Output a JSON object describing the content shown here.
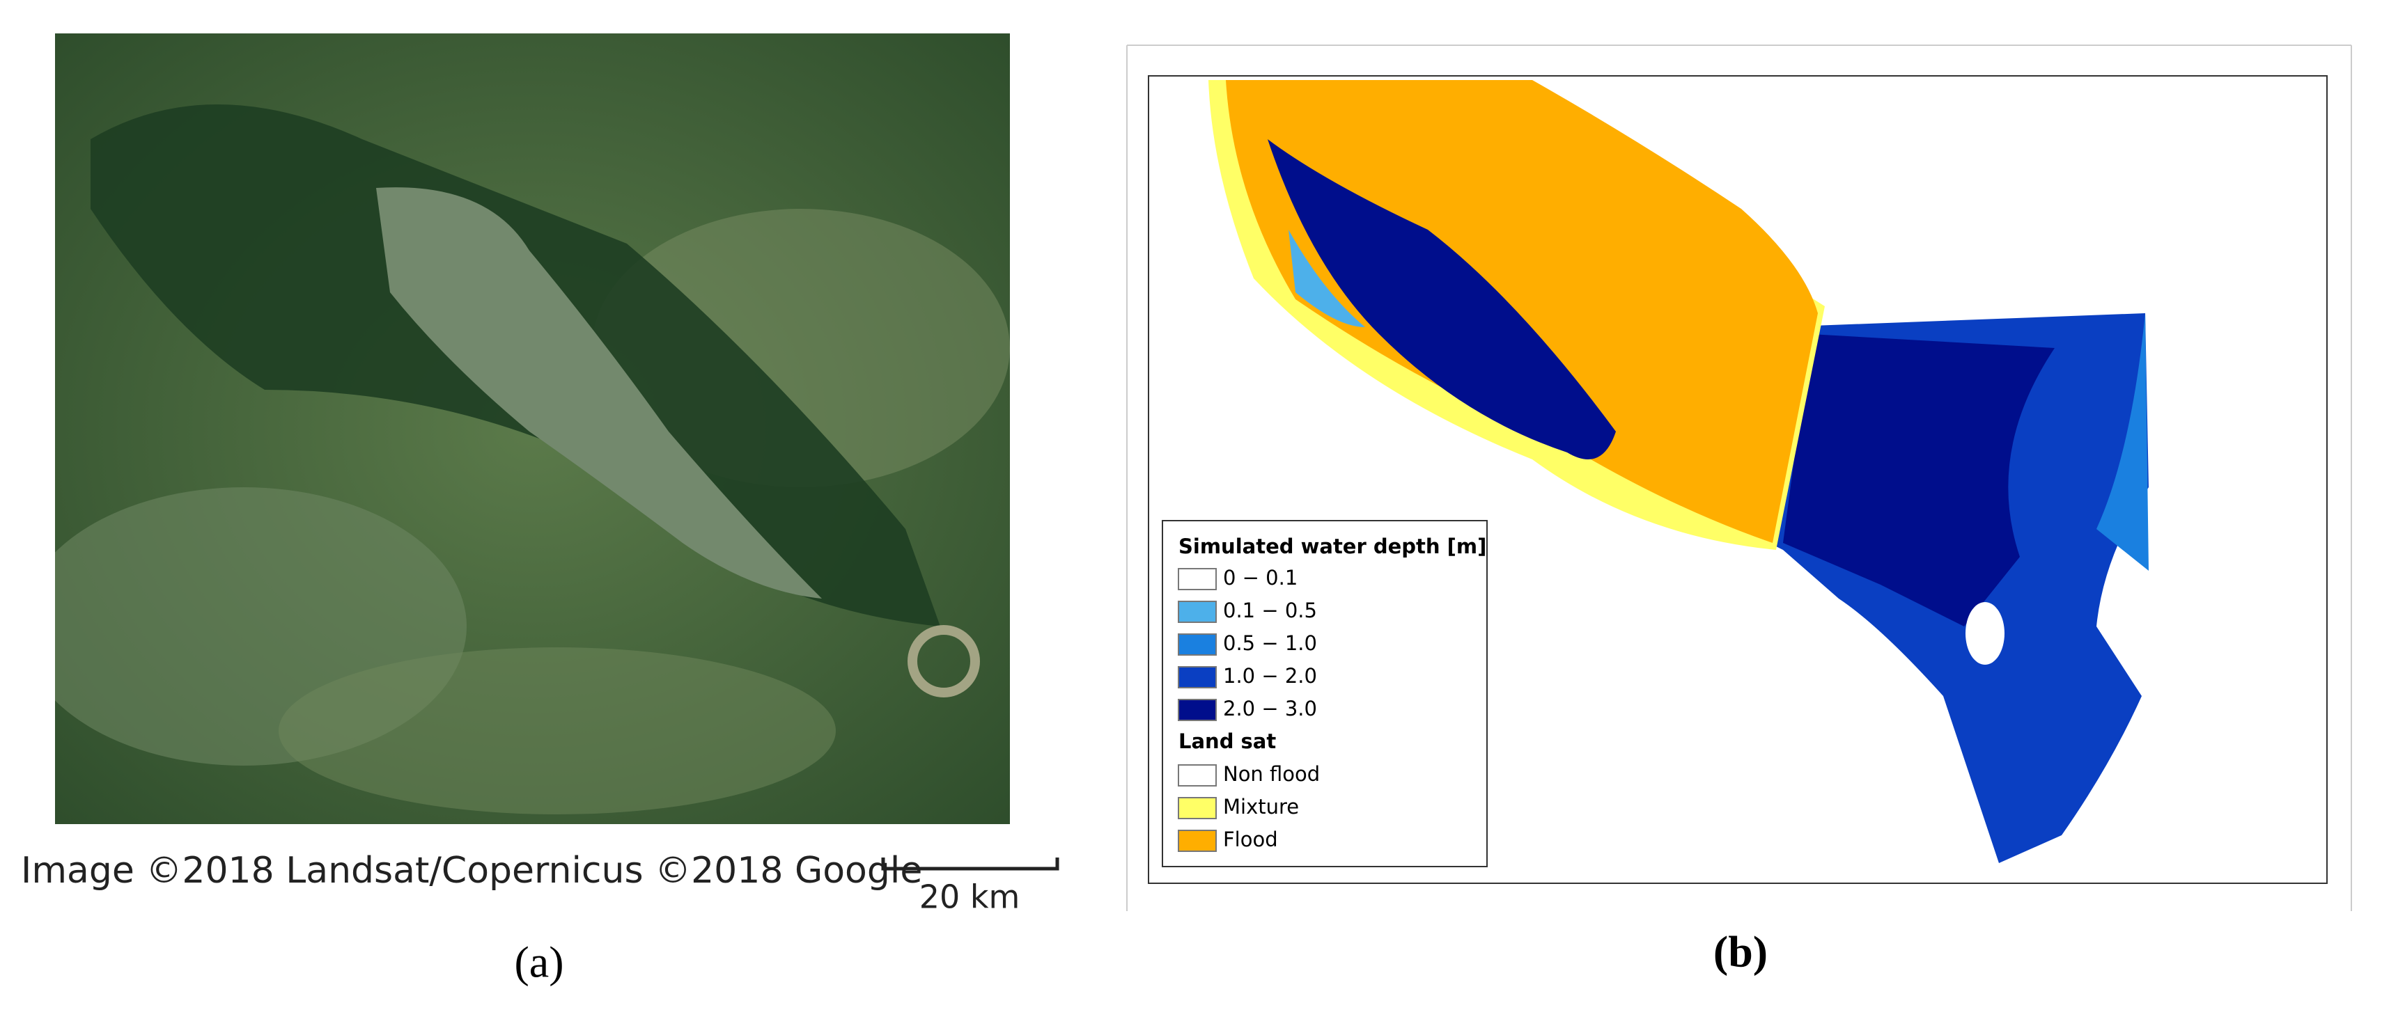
{
  "panel_a": {
    "attribution": "Image ©2018 Landsat/Copernicus ©2018 Google",
    "scale_label": "20 km",
    "label": "(a)"
  },
  "panel_b": {
    "label": "(b)",
    "legend": {
      "depth_title": "Simulated water depth [m]",
      "depth_items": [
        {
          "label": "0 − 0.1",
          "color": "#ffffff"
        },
        {
          "label": "0.1 − 0.5",
          "color": "#4db0ea"
        },
        {
          "label": "0.5 − 1.0",
          "color": "#1a80e0"
        },
        {
          "label": "1.0 − 2.0",
          "color": "#0a3fc2"
        },
        {
          "label": "2.0 − 3.0",
          "color": "#000e8c"
        }
      ],
      "landsat_title": "Land sat",
      "landsat_items": [
        {
          "label": "Non flood",
          "color": "#ffffff"
        },
        {
          "label": "Mixture",
          "color": "#ffff66"
        },
        {
          "label": "Flood",
          "color": "#ffae00"
        }
      ]
    }
  }
}
